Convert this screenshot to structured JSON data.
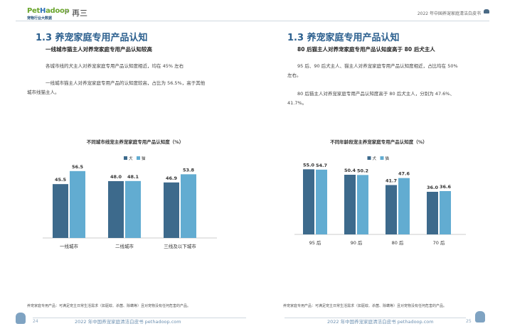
{
  "header": {
    "logo_pet": "Pet",
    "logo_h": "H",
    "logo_rest": "adoop",
    "logo_sub": "宠物行业大数据",
    "separator": "×",
    "partner": "再三",
    "report_title": "2022 年中国养宠家庭清洁白皮书"
  },
  "left": {
    "section_title": "1.3 养宠家庭专用产品认知",
    "subtitle": "一线城市猫主人对养宠家庭专用产品认知较高",
    "para1": "各城市线的犬主人对养宠家庭专用产品认知度相近，均在 45% 左右",
    "para2_line1": "一线城市猫主人对养宠家庭专用产品的认知度较高，占比为 56.5%，高于其他",
    "para2_line2": "城市线猫主人。",
    "footnote": "养宠家庭专用产品：可满足宠主日常生活需求（如驱蚊、杀菌、除螨等）且对宠物没有任何危害的产品。",
    "page_number": "24",
    "footer_text": "2022 年中国养宠家庭清洁白皮书 pethadoop.com"
  },
  "right": {
    "section_title": "1.3 养宠家庭专用产品认知",
    "subtitle": "80 后猫主人对养宠家庭专用产品认知度高于 80 后犬主人",
    "para1_line1": "95 后、90 后犬主人、猫主人对养宠家庭专用产品认知度相近，占比均在 50%",
    "para1_line2": "左右。",
    "para2_line1": "80 后猫主人对养宠家庭专用产品认知度高于 80 后犬主人，分别为 47.6%、",
    "para2_line2": "41.7%。",
    "footnote": "养宠家庭专用产品：可满足宠主日常生活需求（如驱蚊、杀菌、除螨等）且对宠物没有任何危害的产品。",
    "page_number": "25",
    "footer_text": "2022 年中国养宠家庭清洁白皮书 pethadoop.com"
  },
  "chart_data": [
    {
      "type": "bar",
      "title": "不同城市线宠主养宠家庭专用产品认知度（%）",
      "categories": [
        "一线城市",
        "二线城市",
        "三线及以下城市"
      ],
      "series": [
        {
          "name": "犬",
          "values": [
            45.5,
            48.0,
            46.9
          ],
          "color": "#3d6a8c"
        },
        {
          "name": "猫",
          "values": [
            56.5,
            48.1,
            53.8
          ],
          "color": "#62acd1"
        }
      ],
      "value_labels": [
        [
          "45.5",
          "48.0",
          "46.9"
        ],
        [
          "56.5",
          "48.1",
          "53.8"
        ]
      ],
      "legend_position": "top",
      "grid": false
    },
    {
      "type": "bar",
      "title": "不同年龄段宠主养宠家庭专用产品认知度（%）",
      "categories": [
        "95 后",
        "90 后",
        "80 后",
        "70 后"
      ],
      "series": [
        {
          "name": "犬",
          "values": [
            55.0,
            50.4,
            41.7,
            36.0
          ],
          "color": "#3d6a8c"
        },
        {
          "name": "猫",
          "values": [
            54.7,
            50.2,
            47.6,
            36.6
          ],
          "color": "#62acd1"
        }
      ],
      "value_labels": [
        [
          "55.0",
          "50.4",
          "41.7",
          "36.0"
        ],
        [
          "54.7",
          "50.2",
          "47.6",
          "36.6"
        ]
      ],
      "legend_position": "top",
      "grid": false
    }
  ]
}
